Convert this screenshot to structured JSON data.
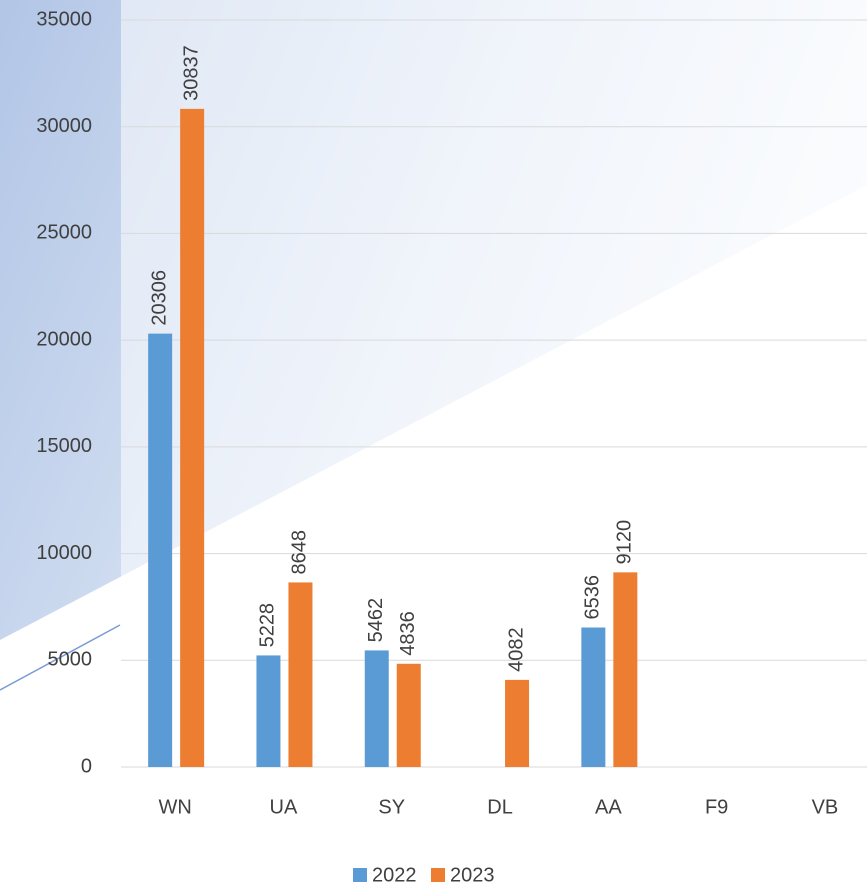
{
  "chart_data": {
    "type": "bar",
    "categories": [
      "WN",
      "UA",
      "SY",
      "DL",
      "AA",
      "F9",
      "VB"
    ],
    "series": [
      {
        "name": "2022",
        "color": "#5b9bd5",
        "values": [
          20306,
          5228,
          5462,
          null,
          6536,
          null,
          null
        ]
      },
      {
        "name": "2023",
        "color": "#ed7d31",
        "values": [
          30837,
          8648,
          4836,
          4082,
          9120,
          null,
          null
        ]
      }
    ],
    "ylim": [
      0,
      35000
    ],
    "yticks": [
      0,
      5000,
      10000,
      15000,
      20000,
      25000,
      30000,
      35000
    ],
    "grid": true,
    "legend": "bottom"
  }
}
